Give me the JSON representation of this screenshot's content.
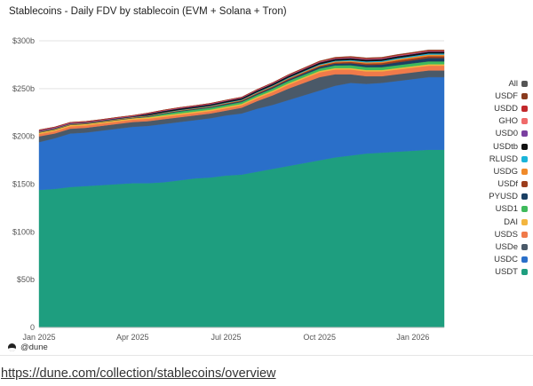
{
  "header": {
    "title": "Stablecoins - Daily FDV by stablecoin (EVM + Solana + Tron)"
  },
  "footer": {
    "brand": "@dune"
  },
  "caption": {
    "link_text": "https://dune.com/collection/stablecoins/overview"
  },
  "chart_data": {
    "type": "area",
    "stacked": true,
    "title": "Stablecoins - Daily FDV by stablecoin (EVM + Solana + Tron)",
    "xlabel": "",
    "ylabel": "",
    "x": [
      "2025-01-01",
      "2025-01-15",
      "2025-02-01",
      "2025-02-15",
      "2025-03-01",
      "2025-03-15",
      "2025-04-01",
      "2025-04-15",
      "2025-05-01",
      "2025-05-15",
      "2025-06-01",
      "2025-06-15",
      "2025-07-01",
      "2025-07-15",
      "2025-08-01",
      "2025-08-15",
      "2025-09-01",
      "2025-09-15",
      "2025-10-01",
      "2025-10-15",
      "2025-11-01",
      "2025-11-15",
      "2025-12-01",
      "2025-12-15",
      "2026-01-01",
      "2026-01-15",
      "2026-02-01"
    ],
    "x_ticks": [
      {
        "label": "Jan 2025",
        "index": 0
      },
      {
        "label": "Apr 2025",
        "index": 6
      },
      {
        "label": "Jul 2025",
        "index": 12
      },
      {
        "label": "Oct 2025",
        "index": 18
      },
      {
        "label": "Jan 2026",
        "index": 24
      }
    ],
    "y_ticks": [
      "0",
      "$50b",
      "$100b",
      "$150b",
      "$200b",
      "$250b",
      "$300b"
    ],
    "ylim": [
      0,
      300
    ],
    "series": [
      {
        "name": "USDT",
        "color": "#1e9e7f",
        "values": [
          144,
          145,
          147,
          148,
          149,
          150,
          151,
          151,
          152,
          154,
          156,
          157,
          159,
          160,
          163,
          166,
          169,
          172,
          175,
          178,
          180,
          182,
          183,
          184,
          185,
          186,
          186
        ]
      },
      {
        "name": "USDC",
        "color": "#2a6fc9",
        "values": [
          50,
          53,
          56,
          56,
          57,
          58,
          59,
          60,
          61,
          61,
          61,
          62,
          63,
          64,
          66,
          67,
          69,
          71,
          73,
          75,
          76,
          73,
          73,
          74,
          75,
          76,
          76
        ]
      },
      {
        "name": "USDe",
        "color": "#4a5968",
        "values": [
          6,
          5,
          5,
          5,
          5,
          5,
          5,
          5,
          5,
          5,
          5,
          5,
          5,
          6,
          8,
          10,
          12,
          13,
          14,
          12,
          9,
          8,
          7,
          7,
          7,
          7,
          7
        ]
      },
      {
        "name": "USDS",
        "color": "#f07a4a",
        "values": [
          2.5,
          2.5,
          2.5,
          2.5,
          2.5,
          2.5,
          2.5,
          2.5,
          2.5,
          2.5,
          2.5,
          2.5,
          2.5,
          2.5,
          3,
          3.5,
          4,
          4.5,
          5,
          5,
          5,
          5,
          5,
          5,
          5,
          5,
          5
        ]
      },
      {
        "name": "DAI",
        "color": "#f3b53f",
        "values": [
          1.5,
          1.5,
          1.5,
          1.5,
          1.5,
          1.5,
          1.5,
          1.5,
          1.5,
          1.5,
          1.5,
          1.5,
          1.5,
          1.5,
          1.5,
          1.5,
          1.5,
          1.5,
          1.5,
          1.5,
          1.5,
          1.5,
          1.5,
          1.5,
          1.5,
          1.5,
          1.5
        ]
      },
      {
        "name": "USD1",
        "color": "#3fba5c",
        "values": [
          0,
          0,
          0,
          0,
          0,
          0,
          0,
          0.5,
          1.5,
          2,
          2,
          2,
          2,
          2,
          2,
          2.2,
          2.5,
          2.5,
          2.5,
          2.8,
          3,
          3,
          3,
          3,
          3,
          3,
          3
        ]
      },
      {
        "name": "PYUSD",
        "color": "#1a3f63",
        "values": [
          0.5,
          0.5,
          0.5,
          0.5,
          0.5,
          0.5,
          0.6,
          0.7,
          0.8,
          0.8,
          0.8,
          0.8,
          0.9,
          0.9,
          1,
          1.1,
          1.2,
          1.4,
          1.6,
          1.8,
          2,
          2.2,
          2.5,
          3,
          3.2,
          3.5,
          3.5
        ]
      },
      {
        "name": "USDf",
        "color": "#9c3d1d",
        "values": [
          0,
          0,
          0,
          0,
          0,
          0,
          0,
          0,
          0,
          0,
          0.1,
          0.3,
          0.5,
          0.6,
          0.8,
          1,
          1,
          1.1,
          1.2,
          1.3,
          1.5,
          1.6,
          1.8,
          2,
          2,
          2,
          2
        ]
      },
      {
        "name": "USDG",
        "color": "#f08a2a",
        "values": [
          0.5,
          0.5,
          0.5,
          0.5,
          0.5,
          0.5,
          0.5,
          0.5,
          0.5,
          0.5,
          0.5,
          0.5,
          0.5,
          0.5,
          0.5,
          0.5,
          0.6,
          0.7,
          0.8,
          1,
          1.1,
          1.2,
          1.3,
          1.4,
          1.5,
          1.6,
          1.6
        ]
      },
      {
        "name": "RLUSD",
        "color": "#1ab4d9",
        "values": [
          0.1,
          0.1,
          0.1,
          0.1,
          0.1,
          0.2,
          0.2,
          0.3,
          0.3,
          0.4,
          0.4,
          0.5,
          0.5,
          0.5,
          0.6,
          0.6,
          0.7,
          0.7,
          0.8,
          0.8,
          0.9,
          1,
          1,
          1.1,
          1.1,
          1.2,
          1.2
        ]
      },
      {
        "name": "USDtb",
        "color": "#111111",
        "values": [
          0.3,
          0.3,
          0.3,
          0.4,
          0.4,
          0.5,
          0.5,
          1.4,
          1.4,
          1.4,
          1.4,
          1.4,
          1.5,
          1.5,
          1.6,
          1.7,
          1.7,
          1.8,
          1.8,
          1.8,
          1.8,
          1.8,
          1.8,
          1.8,
          1.8,
          1.8,
          1.8
        ]
      },
      {
        "name": "USD0",
        "color": "#7a3fa0",
        "values": [
          0.8,
          0.8,
          0.7,
          0.6,
          0.6,
          0.6,
          0.5,
          0.5,
          0.5,
          0.5,
          0.5,
          0.5,
          0.5,
          0.5,
          0.5,
          0.5,
          0.5,
          0.5,
          0.5,
          0.5,
          0.5,
          0.5,
          0.5,
          0.5,
          0.5,
          0.5,
          0.5
        ]
      },
      {
        "name": "GHO",
        "color": "#f06a6a",
        "values": [
          0.2,
          0.2,
          0.2,
          0.2,
          0.2,
          0.2,
          0.2,
          0.2,
          0.2,
          0.2,
          0.2,
          0.2,
          0.2,
          0.2,
          0.3,
          0.3,
          0.3,
          0.3,
          0.3,
          0.3,
          0.4,
          0.4,
          0.4,
          0.4,
          0.4,
          0.4,
          0.4
        ]
      },
      {
        "name": "USDD",
        "color": "#c2282b",
        "values": [
          0.4,
          0.4,
          0.4,
          0.4,
          0.4,
          0.4,
          0.4,
          0.4,
          0.4,
          0.4,
          0.4,
          0.4,
          0.4,
          0.4,
          0.4,
          0.4,
          0.4,
          0.4,
          0.4,
          0.4,
          0.4,
          0.4,
          0.4,
          0.4,
          0.4,
          0.4,
          0.4
        ]
      },
      {
        "name": "USDF",
        "color": "#8a3b1e",
        "values": [
          0,
          0,
          0,
          0,
          0,
          0,
          0,
          0,
          0,
          0,
          0,
          0,
          0,
          0,
          0,
          0,
          0.3,
          0.4,
          0.5,
          0.6,
          0.6,
          0.6,
          0.6,
          0.6,
          0.6,
          0.6,
          0.6
        ]
      },
      {
        "name": "All",
        "color": "#555555",
        "values": [
          0,
          0,
          0,
          0,
          0,
          0,
          0,
          0,
          0,
          0,
          0,
          0,
          0,
          0,
          0,
          0,
          0,
          0,
          0,
          0,
          0,
          0,
          0,
          0,
          0,
          0,
          0
        ]
      }
    ]
  }
}
